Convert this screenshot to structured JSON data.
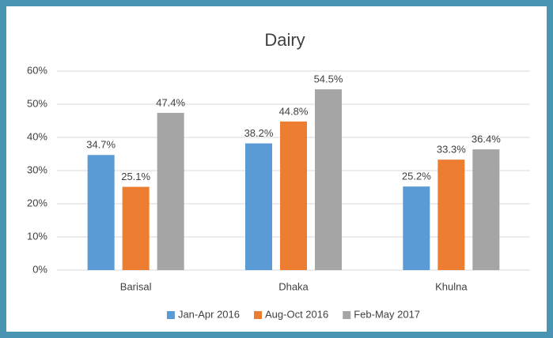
{
  "chart_data": {
    "type": "bar",
    "title": "Dairy",
    "categories": [
      "Barisal",
      "Dhaka",
      "Khulna"
    ],
    "series": [
      {
        "name": "Jan-Apr 2016",
        "color": "#5b9bd5",
        "values": [
          34.7,
          38.2,
          25.2
        ],
        "value_labels": [
          "34.7%",
          "38.2%",
          "25.2%"
        ]
      },
      {
        "name": "Aug-Oct 2016",
        "color": "#ed7d31",
        "values": [
          25.1,
          44.8,
          33.3
        ],
        "value_labels": [
          "25.1%",
          "44.8%",
          "33.3%"
        ]
      },
      {
        "name": "Feb-May 2017",
        "color": "#a5a5a5",
        "values": [
          47.4,
          54.5,
          36.4
        ],
        "value_labels": [
          "47.4%",
          "54.5%",
          "36.4%"
        ]
      }
    ],
    "ylim": [
      0,
      60
    ],
    "yticks": [
      {
        "value": 0,
        "label": "0%"
      },
      {
        "value": 10,
        "label": "10%"
      },
      {
        "value": 20,
        "label": "20%"
      },
      {
        "value": 30,
        "label": "30%"
      },
      {
        "value": 40,
        "label": "40%"
      },
      {
        "value": 50,
        "label": "50%"
      },
      {
        "value": 60,
        "label": "60%"
      }
    ],
    "grid": true,
    "legend": "bottom"
  }
}
